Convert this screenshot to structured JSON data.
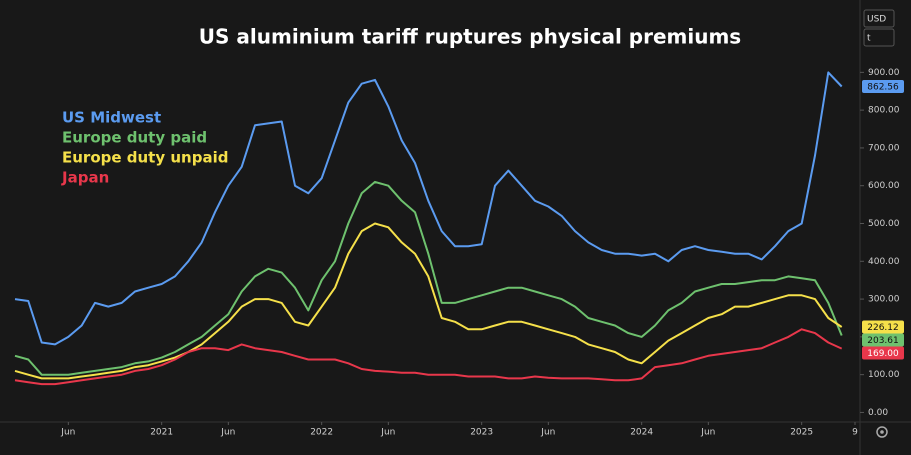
{
  "chart_data": {
    "type": "line",
    "title": "US aluminium tariff ruptures physical premiums",
    "currency": "USD",
    "unit": "t",
    "x": [
      "2020-02",
      "2020-03",
      "2020-04",
      "2020-05",
      "2020-06",
      "2020-07",
      "2020-08",
      "2020-09",
      "2020-10",
      "2020-11",
      "2020-12",
      "2021-01",
      "2021-02",
      "2021-03",
      "2021-04",
      "2021-05",
      "2021-06",
      "2021-07",
      "2021-08",
      "2021-09",
      "2021-10",
      "2021-11",
      "2021-12",
      "2022-01",
      "2022-02",
      "2022-03",
      "2022-04",
      "2022-05",
      "2022-06",
      "2022-07",
      "2022-08",
      "2022-09",
      "2022-10",
      "2022-11",
      "2022-12",
      "2023-01",
      "2023-02",
      "2023-03",
      "2023-04",
      "2023-05",
      "2023-06",
      "2023-07",
      "2023-08",
      "2023-09",
      "2023-10",
      "2023-11",
      "2023-12",
      "2024-01",
      "2024-02",
      "2024-03",
      "2024-04",
      "2024-05",
      "2024-06",
      "2024-07",
      "2024-08",
      "2024-09",
      "2024-10",
      "2024-11",
      "2024-12",
      "2025-01",
      "2025-02",
      "2025-03",
      "2025-04"
    ],
    "series": [
      {
        "name": "US Midwest",
        "color": "#5b9bf0",
        "values": [
          300,
          295,
          185,
          180,
          200,
          230,
          290,
          280,
          290,
          320,
          330,
          340,
          360,
          400,
          450,
          530,
          600,
          650,
          760,
          765,
          770,
          600,
          580,
          620,
          720,
          820,
          870,
          880,
          810,
          720,
          660,
          560,
          480,
          440,
          440,
          445,
          600,
          640,
          600,
          560,
          545,
          520,
          480,
          450,
          430,
          420,
          420,
          415,
          420,
          400,
          430,
          440,
          430,
          425,
          420,
          420,
          405,
          440,
          480,
          500,
          680,
          900,
          862.56
        ],
        "value_labels": [
          null,
          null,
          null,
          null,
          null,
          null,
          null,
          null,
          null,
          null,
          null,
          null,
          null,
          null,
          null,
          null,
          null,
          null,
          null,
          null,
          null,
          null,
          null,
          null,
          null,
          null,
          null,
          null,
          null,
          null,
          null,
          null,
          null,
          null,
          null,
          null,
          null,
          null,
          null,
          null,
          null,
          null,
          null,
          null,
          null,
          null,
          null,
          null,
          null,
          null,
          null,
          null,
          null,
          null,
          null,
          null,
          null,
          null,
          null,
          null,
          null,
          null,
          "862.56"
        ]
      },
      {
        "name": "Europe duty paid",
        "color": "#6ec16e",
        "values": [
          150,
          140,
          100,
          100,
          100,
          105,
          110,
          115,
          120,
          130,
          135,
          145,
          160,
          180,
          200,
          230,
          260,
          320,
          360,
          380,
          370,
          330,
          270,
          350,
          400,
          500,
          580,
          610,
          600,
          560,
          530,
          420,
          290,
          290,
          300,
          310,
          320,
          330,
          330,
          320,
          310,
          300,
          280,
          250,
          240,
          230,
          210,
          200,
          230,
          270,
          290,
          320,
          330,
          340,
          340,
          345,
          350,
          350,
          360,
          355,
          350,
          290,
          203.61
        ],
        "value_labels": [
          null,
          null,
          null,
          null,
          null,
          null,
          null,
          null,
          null,
          null,
          null,
          null,
          null,
          null,
          null,
          null,
          null,
          null,
          null,
          null,
          null,
          null,
          null,
          null,
          null,
          null,
          null,
          null,
          null,
          null,
          null,
          null,
          null,
          null,
          null,
          null,
          null,
          null,
          null,
          null,
          null,
          null,
          null,
          null,
          null,
          null,
          null,
          null,
          null,
          null,
          null,
          null,
          null,
          null,
          null,
          null,
          null,
          null,
          null,
          null,
          null,
          null,
          "203.61"
        ]
      },
      {
        "name": "Europe duty unpaid",
        "color": "#f5e04a",
        "values": [
          110,
          100,
          90,
          90,
          90,
          95,
          100,
          105,
          110,
          120,
          125,
          135,
          145,
          160,
          180,
          210,
          240,
          280,
          300,
          300,
          290,
          240,
          230,
          280,
          330,
          420,
          480,
          500,
          490,
          450,
          420,
          360,
          250,
          240,
          220,
          220,
          230,
          240,
          240,
          230,
          220,
          210,
          200,
          180,
          170,
          160,
          140,
          130,
          160,
          190,
          210,
          230,
          250,
          260,
          280,
          280,
          290,
          300,
          310,
          310,
          300,
          250,
          226.12
        ],
        "value_labels": [
          null,
          null,
          null,
          null,
          null,
          null,
          null,
          null,
          null,
          null,
          null,
          null,
          null,
          null,
          null,
          null,
          null,
          null,
          null,
          null,
          null,
          null,
          null,
          null,
          null,
          null,
          null,
          null,
          null,
          null,
          null,
          null,
          null,
          null,
          null,
          null,
          null,
          null,
          null,
          null,
          null,
          null,
          null,
          null,
          null,
          null,
          null,
          null,
          null,
          null,
          null,
          null,
          null,
          null,
          null,
          null,
          null,
          null,
          null,
          null,
          null,
          null,
          "226.12"
        ]
      },
      {
        "name": "Japan",
        "color": "#e8374b",
        "values": [
          85,
          80,
          75,
          75,
          80,
          85,
          90,
          95,
          100,
          110,
          115,
          125,
          140,
          160,
          170,
          170,
          165,
          180,
          170,
          165,
          160,
          150,
          140,
          140,
          140,
          130,
          115,
          110,
          108,
          105,
          105,
          100,
          100,
          100,
          95,
          95,
          95,
          90,
          90,
          95,
          92,
          90,
          90,
          90,
          88,
          85,
          85,
          90,
          120,
          125,
          130,
          140,
          150,
          155,
          160,
          165,
          170,
          185,
          200,
          220,
          210,
          185,
          169
        ],
        "value_labels": [
          null,
          null,
          null,
          null,
          null,
          null,
          null,
          null,
          null,
          null,
          null,
          null,
          null,
          null,
          null,
          null,
          null,
          null,
          null,
          null,
          null,
          null,
          null,
          null,
          null,
          null,
          null,
          null,
          null,
          null,
          null,
          null,
          null,
          null,
          null,
          null,
          null,
          null,
          null,
          null,
          null,
          null,
          null,
          null,
          null,
          null,
          null,
          null,
          null,
          null,
          null,
          null,
          null,
          null,
          null,
          null,
          null,
          null,
          null,
          null,
          null,
          null,
          "169.00"
        ]
      }
    ],
    "xlim": [
      "2020-02",
      "2025-05"
    ],
    "xticks": [
      {
        "value": "2020-06",
        "label": "Jun"
      },
      {
        "value": "2021-01",
        "label": "2021"
      },
      {
        "value": "2021-06",
        "label": "Jun"
      },
      {
        "value": "2022-01",
        "label": "2022"
      },
      {
        "value": "2022-06",
        "label": "Jun"
      },
      {
        "value": "2023-01",
        "label": "2023"
      },
      {
        "value": "2023-06",
        "label": "Jun"
      },
      {
        "value": "2024-01",
        "label": "2024"
      },
      {
        "value": "2024-06",
        "label": "Jun"
      },
      {
        "value": "2025-01",
        "label": "2025"
      },
      {
        "value": "2025-05",
        "label": "9"
      }
    ],
    "ylim": [
      -20,
      1065
    ],
    "yticks": [
      {
        "value": 0,
        "label": "0.00"
      },
      {
        "value": 100,
        "label": "100.00"
      },
      {
        "value": 200,
        "label": "200.00"
      },
      {
        "value": 300,
        "label": "300.00"
      },
      {
        "value": 400,
        "label": "400.00"
      },
      {
        "value": 500,
        "label": "500.00"
      },
      {
        "value": 600,
        "label": "600.00"
      },
      {
        "value": 700,
        "label": "700.00"
      },
      {
        "value": 800,
        "label": "800.00"
      },
      {
        "value": 900,
        "label": "900.00"
      }
    ],
    "grid": false,
    "legend": "upper left"
  }
}
